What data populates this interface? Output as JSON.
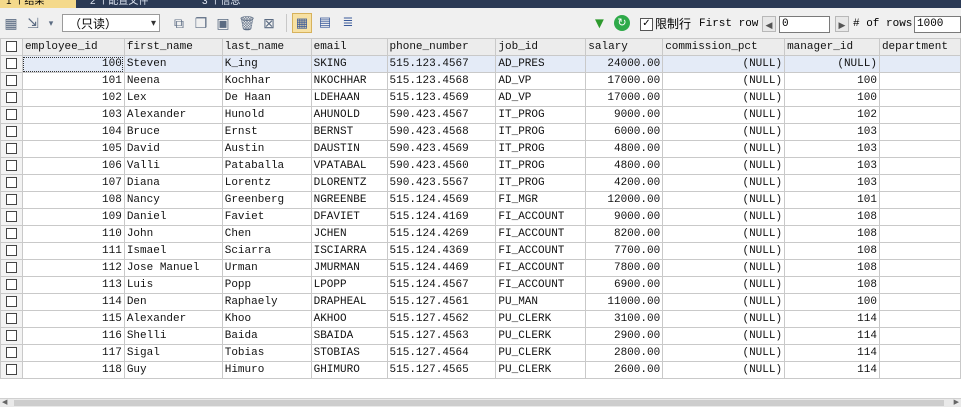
{
  "tabs": [
    {
      "label": "1 个结果",
      "active": true
    },
    {
      "label": "2 个配置文件",
      "active": false
    },
    {
      "label": "3 个信息",
      "active": false
    }
  ],
  "toolbar": {
    "mode_value": "（只读）",
    "limit_label": "限制行",
    "limit_checked": true,
    "first_row_label": "First row",
    "first_row_value": "0",
    "rows_label": "# of rows",
    "rows_value": "1000",
    "icons": [
      "table-export-icon",
      "add-row-icon",
      "duplicate-row-icon",
      "copy-row-icon",
      "save-icon",
      "delete-icon",
      "discard-icon",
      "grid-view-icon",
      "form-view-icon",
      "text-view-icon",
      "filter-icon",
      "refresh-icon"
    ]
  },
  "table": {
    "columns": [
      "employee_id",
      "first_name",
      "last_name",
      "email",
      "phone_number",
      "job_id",
      "salary",
      "commission_pct",
      "manager_id",
      "department"
    ],
    "rows": [
      [
        "100",
        "Steven",
        "K_ing",
        "SKING",
        "515.123.4567",
        "AD_PRES",
        "24000.00",
        "(NULL)",
        "(NULL)",
        ""
      ],
      [
        "101",
        "Neena",
        "Kochhar",
        "NKOCHHAR",
        "515.123.4568",
        "AD_VP",
        "17000.00",
        "(NULL)",
        "100",
        ""
      ],
      [
        "102",
        "Lex",
        "De Haan",
        "LDEHAAN",
        "515.123.4569",
        "AD_VP",
        "17000.00",
        "(NULL)",
        "100",
        ""
      ],
      [
        "103",
        "Alexander",
        "Hunold",
        "AHUNOLD",
        "590.423.4567",
        "IT_PROG",
        "9000.00",
        "(NULL)",
        "102",
        ""
      ],
      [
        "104",
        "Bruce",
        "Ernst",
        "BERNST",
        "590.423.4568",
        "IT_PROG",
        "6000.00",
        "(NULL)",
        "103",
        ""
      ],
      [
        "105",
        "David",
        "Austin",
        "DAUSTIN",
        "590.423.4569",
        "IT_PROG",
        "4800.00",
        "(NULL)",
        "103",
        ""
      ],
      [
        "106",
        "Valli",
        "Pataballa",
        "VPATABAL",
        "590.423.4560",
        "IT_PROG",
        "4800.00",
        "(NULL)",
        "103",
        ""
      ],
      [
        "107",
        "Diana",
        "Lorentz",
        "DLORENTZ",
        "590.423.5567",
        "IT_PROG",
        "4200.00",
        "(NULL)",
        "103",
        ""
      ],
      [
        "108",
        "Nancy",
        "Greenberg",
        "NGREENBE",
        "515.124.4569",
        "FI_MGR",
        "12000.00",
        "(NULL)",
        "101",
        ""
      ],
      [
        "109",
        "Daniel",
        "Faviet",
        "DFAVIET",
        "515.124.4169",
        "FI_ACCOUNT",
        "9000.00",
        "(NULL)",
        "108",
        ""
      ],
      [
        "110",
        "John",
        "Chen",
        "JCHEN",
        "515.124.4269",
        "FI_ACCOUNT",
        "8200.00",
        "(NULL)",
        "108",
        ""
      ],
      [
        "111",
        "Ismael",
        "Sciarra",
        "ISCIARRA",
        "515.124.4369",
        "FI_ACCOUNT",
        "7700.00",
        "(NULL)",
        "108",
        ""
      ],
      [
        "112",
        "Jose Manuel",
        "Urman",
        "JMURMAN",
        "515.124.4469",
        "FI_ACCOUNT",
        "7800.00",
        "(NULL)",
        "108",
        ""
      ],
      [
        "113",
        "Luis",
        "Popp",
        "LPOPP",
        "515.124.4567",
        "FI_ACCOUNT",
        "6900.00",
        "(NULL)",
        "108",
        ""
      ],
      [
        "114",
        "Den",
        "Raphaely",
        "DRAPHEAL",
        "515.127.4561",
        "PU_MAN",
        "11000.00",
        "(NULL)",
        "100",
        ""
      ],
      [
        "115",
        "Alexander",
        "Khoo",
        "AKHOO",
        "515.127.4562",
        "PU_CLERK",
        "3100.00",
        "(NULL)",
        "114",
        ""
      ],
      [
        "116",
        "Shelli",
        "Baida",
        "SBAIDA",
        "515.127.4563",
        "PU_CLERK",
        "2900.00",
        "(NULL)",
        "114",
        ""
      ],
      [
        "117",
        "Sigal",
        "Tobias",
        "STOBIAS",
        "515.127.4564",
        "PU_CLERK",
        "2800.00",
        "(NULL)",
        "114",
        ""
      ],
      [
        "118",
        "Guy",
        "Himuro",
        "GHIMURO",
        "515.127.4565",
        "PU_CLERK",
        "2600.00",
        "(NULL)",
        "114",
        ""
      ]
    ],
    "numeric_columns": [
      0,
      6,
      7,
      8
    ],
    "selected_row": 0
  }
}
